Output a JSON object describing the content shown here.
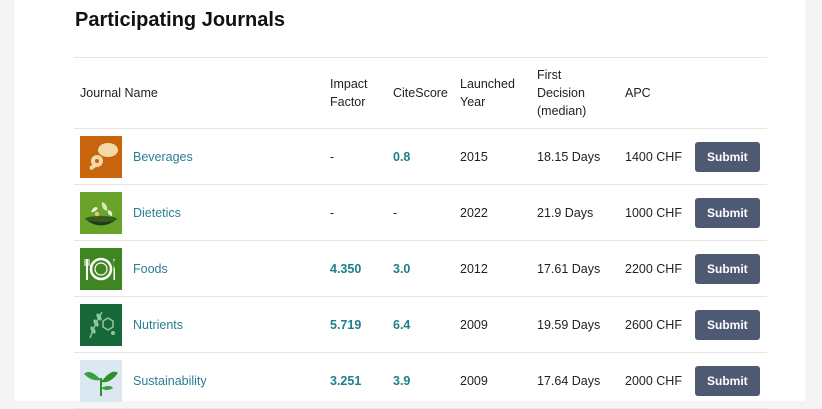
{
  "heading": "Participating Journals",
  "columns": {
    "journal": "Journal Name",
    "impact": [
      "Impact",
      "Factor"
    ],
    "citescore": "CiteScore",
    "launched": [
      "Launched",
      "Year"
    ],
    "decision": [
      "First",
      "Decision",
      "(median)"
    ],
    "apc": "APC"
  },
  "rows": [
    {
      "name": "Beverages",
      "icon": "bread-icon",
      "color": "#c8640b",
      "impact": "-",
      "citescore": "0.8",
      "year": "2015",
      "decision": "18.15 Days",
      "apc": "1400 CHF",
      "submit": "Submit"
    },
    {
      "name": "Dietetics",
      "icon": "food-bowl-icon",
      "color": "#69a32b",
      "impact": "-",
      "citescore": "-",
      "year": "2022",
      "decision": "21.9 Days",
      "apc": "1000 CHF",
      "submit": "Submit"
    },
    {
      "name": "Foods",
      "icon": "plate-cutlery-icon",
      "color": "#3f8622",
      "impact": "4.350",
      "citescore": "3.0",
      "year": "2012",
      "decision": "17.61 Days",
      "apc": "2200 CHF",
      "submit": "Submit"
    },
    {
      "name": "Nutrients",
      "icon": "wheat-molecule-icon",
      "color": "#16673a",
      "impact": "5.719",
      "citescore": "6.4",
      "year": "2009",
      "decision": "19.59 Days",
      "apc": "2600 CHF",
      "submit": "Submit"
    },
    {
      "name": "Sustainability",
      "icon": "sprout-icon",
      "color": "#dbe8f2",
      "impact": "3.251",
      "citescore": "3.9",
      "year": "2009",
      "decision": "17.64 Days",
      "apc": "2000 CHF",
      "submit": "Submit"
    }
  ]
}
